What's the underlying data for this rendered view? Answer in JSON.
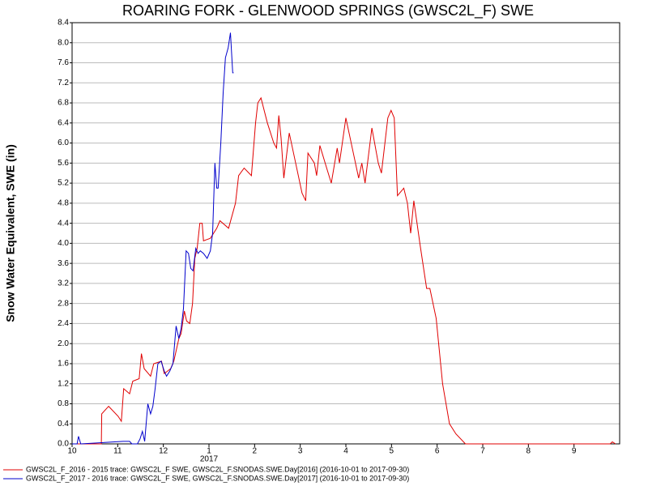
{
  "chart_data": {
    "type": "line",
    "title": "ROARING FORK - GLENWOOD SPRINGS (GWSC2L_F) SWE",
    "y_label": "Snow Water Equivalent, SWE (in)",
    "year_label": "2017",
    "xlim": [
      0,
      12
    ],
    "xticks": [
      {
        "value": 0,
        "label": "10"
      },
      {
        "value": 1,
        "label": "11"
      },
      {
        "value": 2,
        "label": "12"
      },
      {
        "value": 3,
        "label": "1"
      },
      {
        "value": 4,
        "label": "2"
      },
      {
        "value": 5,
        "label": "3"
      },
      {
        "value": 6,
        "label": "4"
      },
      {
        "value": 7,
        "label": "5"
      },
      {
        "value": 8,
        "label": "6"
      },
      {
        "value": 9,
        "label": "7"
      },
      {
        "value": 10,
        "label": "8"
      },
      {
        "value": 11,
        "label": "9"
      }
    ],
    "ylim": [
      0,
      8.4
    ],
    "yticks": [
      {
        "value": 0,
        "label": "0.0"
      },
      0.4,
      0.8,
      1.2,
      1.6,
      {
        "value": 2,
        "label": "2.0"
      },
      2.4,
      2.8,
      3.2,
      3.6,
      {
        "value": 4,
        "label": "4.0"
      },
      4.4,
      4.8,
      5.2,
      5.6,
      {
        "value": 6,
        "label": "6.0"
      },
      6.4,
      6.8,
      7.2,
      7.6,
      {
        "value": 8,
        "label": "8.0"
      },
      8.4
    ],
    "grid": true,
    "series": [
      {
        "name": "GWSC2L_F_2016 - 2015 trace: GWSC2L_F SWE, GWSC2L_F.SNODAS.SWE.Day[2016] (2016-10-01 to 2017-09-30)",
        "color": "#e00000",
        "x": [
          0,
          0.64,
          0.65,
          0.8,
          1.01,
          1.08,
          1.13,
          1.26,
          1.33,
          1.47,
          1.52,
          1.58,
          1.72,
          1.79,
          1.96,
          2.02,
          2.16,
          2.23,
          2.34,
          2.39,
          2.46,
          2.51,
          2.58,
          2.64,
          2.69,
          2.74,
          2.8,
          2.85,
          2.88,
          3.03,
          3.17,
          3.24,
          3.43,
          3.58,
          3.65,
          3.77,
          3.93,
          4.02,
          4.07,
          4.14,
          4.28,
          4.42,
          4.48,
          4.53,
          4.58,
          4.64,
          4.76,
          4.9,
          5.04,
          5.12,
          5.17,
          5.31,
          5.36,
          5.43,
          5.58,
          5.68,
          5.81,
          5.86,
          6.0,
          6.14,
          6.28,
          6.35,
          6.42,
          6.57,
          6.71,
          6.78,
          6.92,
          6.99,
          7.06,
          7.13,
          7.27,
          7.35,
          7.42,
          7.49,
          7.63,
          7.77,
          7.84,
          7.98,
          8.12,
          8.27,
          8.41,
          8.62,
          11.79,
          11.84,
          11.91
        ],
        "values": [
          0,
          0,
          0.6,
          0.75,
          0.55,
          0.45,
          1.1,
          1.0,
          1.25,
          1.3,
          1.8,
          1.5,
          1.35,
          1.6,
          1.65,
          1.4,
          1.5,
          1.65,
          2.1,
          2.2,
          2.65,
          2.45,
          2.4,
          2.8,
          3.7,
          3.9,
          4.4,
          4.4,
          4.05,
          4.1,
          4.3,
          4.45,
          4.3,
          4.8,
          5.35,
          5.5,
          5.35,
          6.4,
          6.8,
          6.9,
          6.4,
          6.0,
          5.9,
          6.55,
          6.1,
          5.3,
          6.2,
          5.6,
          5.0,
          4.85,
          5.8,
          5.6,
          5.35,
          5.95,
          5.5,
          5.2,
          5.9,
          5.6,
          6.5,
          5.9,
          5.3,
          5.6,
          5.2,
          6.3,
          5.6,
          5.4,
          6.5,
          6.65,
          6.5,
          4.95,
          5.1,
          4.8,
          4.2,
          4.85,
          3.95,
          3.1,
          3.1,
          2.5,
          1.2,
          0.4,
          0.2,
          0,
          0,
          0.04,
          0
        ]
      },
      {
        "name": "GWSC2L_F_2017 - 2016 trace: GWSC2L_F SWE, GWSC2L_F.SNODAS.SWE.Day[2017] (2016-10-01 to 2017-09-30)",
        "color": "#0000cc",
        "x": [
          0,
          0.11,
          0.14,
          0.19,
          1.12,
          1.26,
          1.31,
          1.43,
          1.49,
          1.54,
          1.59,
          1.66,
          1.72,
          1.77,
          1.82,
          1.88,
          1.95,
          2.02,
          2.07,
          2.14,
          2.21,
          2.28,
          2.34,
          2.39,
          2.44,
          2.5,
          2.55,
          2.6,
          2.65,
          2.71,
          2.76,
          2.81,
          2.88,
          2.96,
          3.03,
          3.08,
          3.13,
          3.17,
          3.2,
          3.26,
          3.31,
          3.36,
          3.42,
          3.47,
          3.52,
          3.54
        ],
        "values": [
          0,
          0,
          0.15,
          0,
          0.05,
          0.05,
          0,
          0,
          0.1,
          0.25,
          0.05,
          0.8,
          0.6,
          0.75,
          1.1,
          1.6,
          1.65,
          1.45,
          1.35,
          1.45,
          1.6,
          2.35,
          2.1,
          2.3,
          2.7,
          3.85,
          3.8,
          3.5,
          3.45,
          3.9,
          3.8,
          3.85,
          3.8,
          3.7,
          3.85,
          4.2,
          5.6,
          5.1,
          5.1,
          6.0,
          7.0,
          7.7,
          7.9,
          8.2,
          7.4,
          7.4
        ]
      }
    ]
  }
}
